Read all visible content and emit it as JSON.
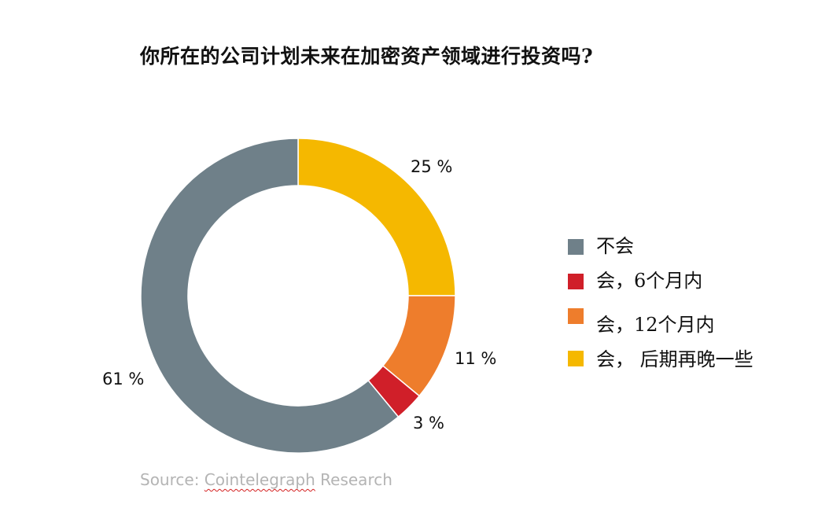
{
  "chart_data": {
    "type": "pie",
    "title": "你所在的公司计划未来在加密资产领域进行投资吗?",
    "categories": [
      "不会",
      "会，6个月内",
      "会，12个月内",
      "会，后期再晚一些"
    ],
    "values": [
      61,
      3,
      11,
      25
    ],
    "value_labels": [
      "61 %",
      "3 %",
      "11 %",
      "25 %"
    ],
    "colors": [
      "#6f8089",
      "#d01f29",
      "#ee7d2c",
      "#f5b800"
    ],
    "donut": true,
    "legend_position": "right"
  },
  "legend": {
    "items": [
      {
        "label": "不会",
        "color": "#6f8089"
      },
      {
        "label": "会，6个月内",
        "color": "#d01f29"
      },
      {
        "label": "会，12个月内",
        "color": "#ee7d2c"
      },
      {
        "label": "会，  后期再晚一些",
        "color": "#f5b800"
      }
    ]
  },
  "source": {
    "prefix": "Source:  ",
    "underlined": "Cointelegraph",
    "suffix": " Research"
  }
}
